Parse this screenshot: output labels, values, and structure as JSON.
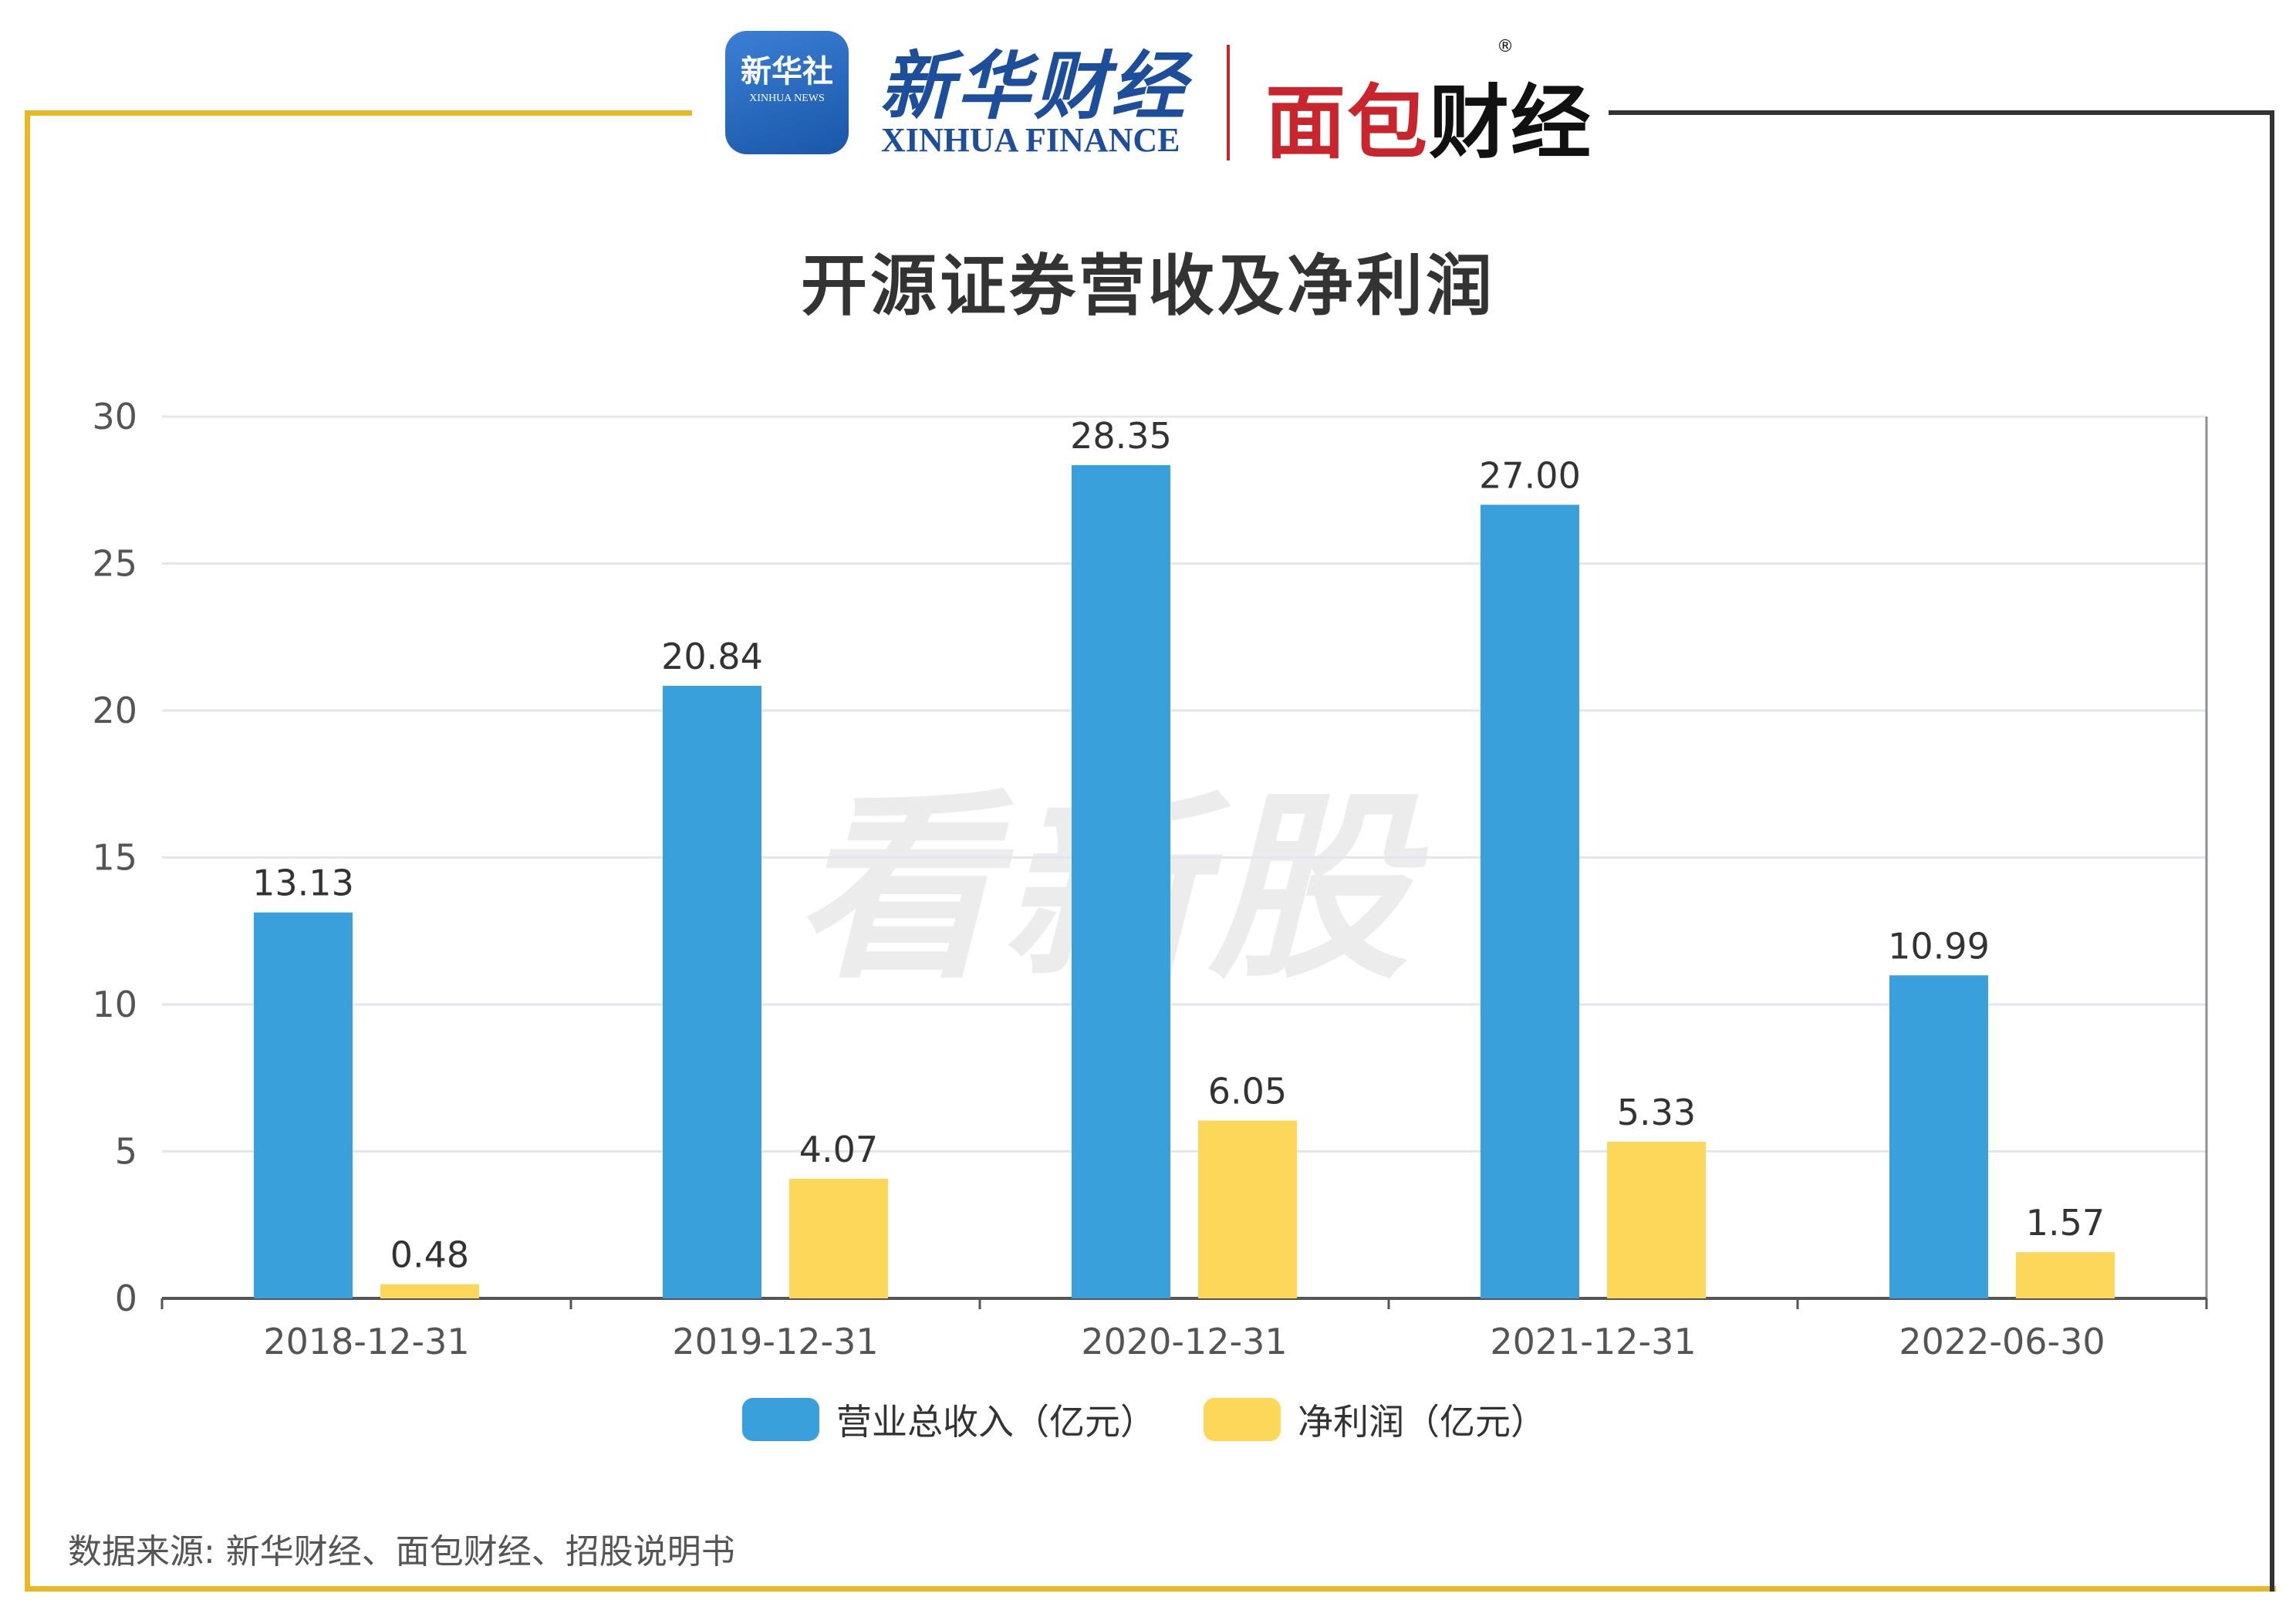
{
  "header": {
    "xinhua_badge_cn": "新华社",
    "xinhua_badge_en": "XINHUA NEWS",
    "xinhua_finance_cn": "新华财经",
    "xinhua_finance_en": "XINHUA FINANCE",
    "mianbao_logo_red": "面包",
    "mianbao_logo_dark": "财经",
    "mianbao_registered": "®"
  },
  "watermark": "看新股",
  "source": "数据来源: 新华财经、面包财经、招股说明书",
  "colors": {
    "frame_gold": "#e9b824",
    "frame_dark": "#333333",
    "revenue": "#3aa0db",
    "profit": "#fdd75a",
    "grid": "#e3e6ef",
    "axis": "#555555"
  },
  "chart_data": {
    "type": "bar",
    "title": "开源证券营收及净利润",
    "xlabel": "",
    "ylabel": "",
    "categories": [
      "2018-12-31",
      "2019-12-31",
      "2020-12-31",
      "2021-12-31",
      "2022-06-30"
    ],
    "series": [
      {
        "name": "营业总收入（亿元）",
        "values": [
          13.13,
          20.84,
          28.35,
          27.0,
          10.99
        ],
        "value_labels": [
          "13.13",
          "20.84",
          "28.35",
          "27.00",
          "10.99"
        ],
        "color": "#3aa0db"
      },
      {
        "name": "净利润（亿元）",
        "values": [
          0.48,
          4.07,
          6.05,
          5.33,
          1.57
        ],
        "value_labels": [
          "0.48",
          "4.07",
          "6.05",
          "5.33",
          "1.57"
        ],
        "color": "#fdd75a"
      }
    ],
    "ylim": [
      0,
      30
    ],
    "yticks": [
      0,
      5,
      10,
      15,
      20,
      25,
      30
    ],
    "ytick_labels": [
      "0",
      "5",
      "10",
      "15",
      "20",
      "25",
      "30"
    ],
    "grid": true,
    "legend_position": "bottom-center"
  }
}
